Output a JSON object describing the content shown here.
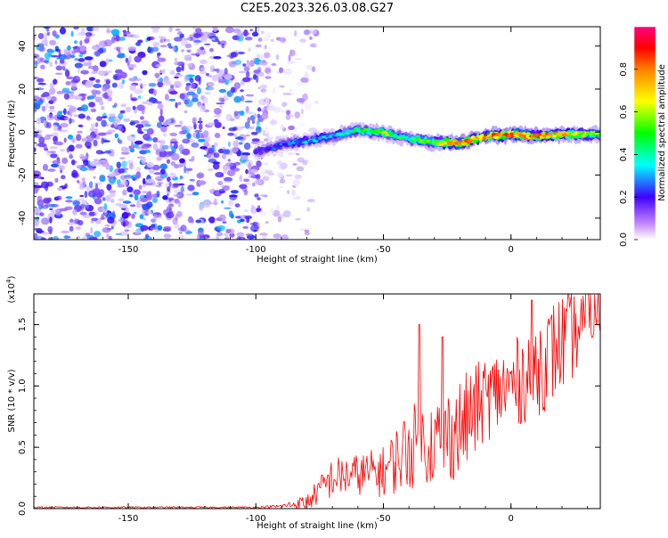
{
  "page": {
    "title": "C2E5.2023.326.03.08.G27"
  },
  "chart_data": [
    {
      "type": "heatmap",
      "title": "C2E5.2023.326.03.08.G27",
      "xlabel": "Height of straight line (km)",
      "ylabel": "Frequency (Hz)",
      "xlim": [
        -187,
        35
      ],
      "ylim": [
        -50,
        49
      ],
      "xticks": [
        -150,
        -100,
        -50,
        0
      ],
      "xtick_labels": [
        "-150",
        "-100",
        "-50",
        "0"
      ],
      "yticks": [
        -40,
        -20,
        0,
        20,
        40
      ],
      "ytick_labels": [
        "-40",
        "-20",
        "0",
        "20",
        "40"
      ],
      "colorbar": {
        "label": "Normalized spectral amplitude",
        "range": [
          0,
          1
        ],
        "ticks": [
          0.0,
          0.2,
          0.4,
          0.6,
          0.8
        ],
        "tick_labels": [
          "0.0",
          "0.2",
          "0.4",
          "0.6",
          "0.8"
        ],
        "colors": [
          "#ffffff",
          "#a070ff",
          "#3000ff",
          "#00ffff",
          "#00ff00",
          "#ffff00",
          "#ff8000",
          "#ff0000",
          "#ff0080"
        ]
      },
      "ridge": {
        "x": [
          -100,
          -90,
          -80,
          -70,
          -60,
          -55,
          -50,
          -45,
          -40,
          -35,
          -30,
          -20,
          -10,
          0,
          10,
          20,
          30,
          35
        ],
        "freq": [
          -9,
          -6,
          -4,
          -2,
          1,
          0,
          0,
          -2,
          -3,
          -4,
          -5,
          -5,
          -2,
          -1,
          -2,
          -1,
          -1,
          -1
        ],
        "amplitude": [
          0.25,
          0.3,
          0.35,
          0.4,
          0.45,
          0.5,
          0.6,
          0.5,
          0.45,
          0.55,
          0.6,
          0.85,
          0.8,
          0.85,
          0.8,
          0.7,
          0.6,
          0.55
        ]
      },
      "noise_region": {
        "x_range": [
          -187,
          -88
        ],
        "freq_range": [
          -50,
          49
        ],
        "amplitude_range": [
          0.05,
          0.35
        ]
      }
    },
    {
      "type": "line",
      "xlabel": "Height of straight line (km)",
      "ylabel": "SNR (10 * v/v)",
      "yscale_note": "(x10",
      "yscale_exp": "4",
      "yscale_close": ")",
      "xlim": [
        -187,
        35
      ],
      "ylim": [
        0,
        1.75
      ],
      "xticks": [
        -150,
        -100,
        -50,
        0
      ],
      "xtick_labels": [
        "-150",
        "-100",
        "-50",
        "0"
      ],
      "yticks": [
        0,
        0.5,
        1.0,
        1.5
      ],
      "ytick_labels": [
        "0.0",
        "0.5",
        "1.0",
        "1.5"
      ],
      "color": "#ff0000",
      "trend": {
        "x": [
          -187,
          -100,
          -90,
          -80,
          -75,
          -70,
          -60,
          -50,
          -40,
          -30,
          -20,
          -10,
          0,
          10,
          20,
          30,
          35
        ],
        "mean": [
          0.01,
          0.01,
          0.02,
          0.05,
          0.15,
          0.25,
          0.28,
          0.3,
          0.5,
          0.55,
          0.65,
          0.9,
          1.0,
          1.15,
          1.35,
          1.5,
          1.6
        ],
        "spread": [
          0.005,
          0.005,
          0.01,
          0.05,
          0.08,
          0.12,
          0.12,
          0.15,
          0.25,
          0.25,
          0.3,
          0.25,
          0.25,
          0.3,
          0.3,
          0.2,
          0.15
        ]
      },
      "peaks": [
        {
          "x": -36,
          "y": 1.5
        },
        {
          "x": -27,
          "y": 1.4
        },
        {
          "x": 8,
          "y": 1.7
        },
        {
          "x": 30,
          "y": 1.75
        }
      ]
    }
  ]
}
